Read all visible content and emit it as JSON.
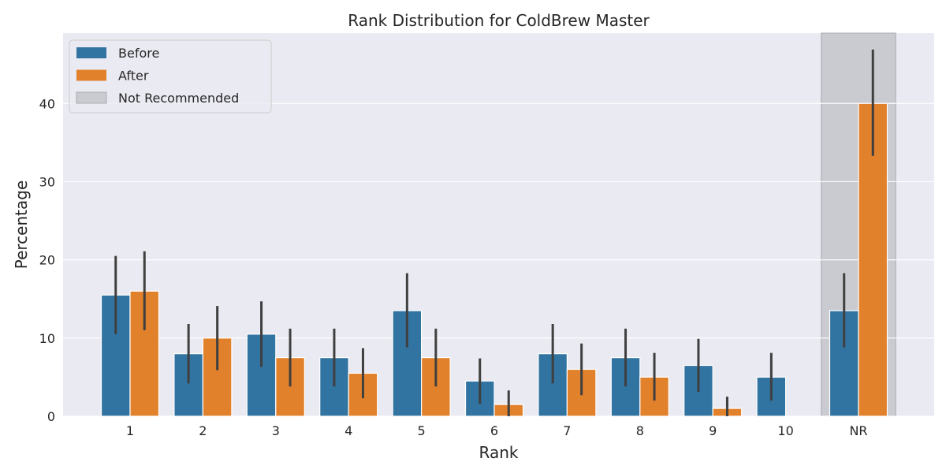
{
  "colors": {
    "background": "#ffffff",
    "plot_bg": "#eaeaf2",
    "grid": "#ffffff",
    "before": "#3274a1",
    "after": "#e1812c",
    "not_recommended": "#a9a9b0",
    "error_bar": "#3f3f3f"
  },
  "chart_data": {
    "type": "bar",
    "title": "Rank Distribution for ColdBrew Master",
    "xlabel": "Rank",
    "ylabel": "Percentage",
    "categories": [
      "1",
      "2",
      "3",
      "4",
      "5",
      "6",
      "7",
      "8",
      "9",
      "10",
      "NR"
    ],
    "ylim": [
      0,
      49
    ],
    "yticks": [
      0,
      10,
      20,
      30,
      40
    ],
    "grid": true,
    "legend_position": "top-left",
    "legend": [
      "Before",
      "After",
      "Not Recommended"
    ],
    "highlight": {
      "category": "NR",
      "label": "Not Recommended"
    },
    "series": [
      {
        "name": "Before",
        "values": [
          15.5,
          8.0,
          10.5,
          7.5,
          13.5,
          4.5,
          8.0,
          7.5,
          6.5,
          5.0,
          13.5
        ],
        "ci_low": [
          10.5,
          4.2,
          6.3,
          3.8,
          8.8,
          1.6,
          4.2,
          3.8,
          3.1,
          2.0,
          8.8
        ],
        "ci_high": [
          20.5,
          11.8,
          14.7,
          11.2,
          18.3,
          7.4,
          11.8,
          11.2,
          9.9,
          8.1,
          18.3
        ]
      },
      {
        "name": "After",
        "values": [
          16.0,
          10.0,
          7.5,
          5.5,
          7.5,
          1.5,
          6.0,
          5.0,
          1.0,
          0.0,
          40.0
        ],
        "ci_low": [
          11.0,
          5.9,
          3.8,
          2.3,
          3.8,
          0.0,
          2.7,
          2.0,
          0.0,
          0.0,
          33.3
        ],
        "ci_high": [
          21.1,
          14.1,
          11.2,
          8.7,
          11.2,
          3.3,
          9.3,
          8.1,
          2.5,
          0.0,
          46.9
        ]
      }
    ]
  }
}
